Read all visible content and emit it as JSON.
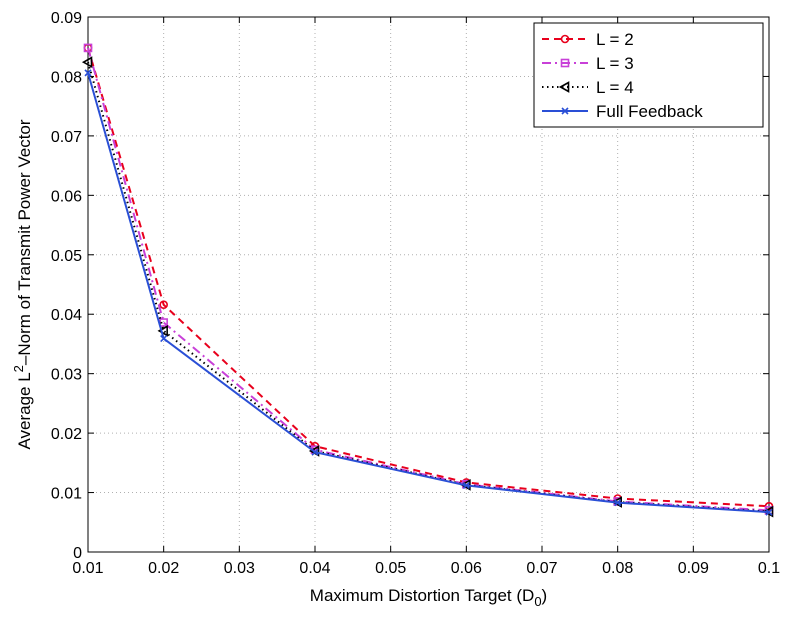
{
  "chart_data": {
    "type": "line",
    "title": "",
    "xlabel": "Maximum Distortion Target (D",
    "xlabel_sub": "0",
    "xlabel_suffix": ")",
    "ylabel": "Average L",
    "ylabel_sup": "2",
    "ylabel_suffix": "–Norm of Transmit Power Vector",
    "xlim": [
      0.01,
      0.1
    ],
    "ylim": [
      0,
      0.09
    ],
    "xticks": [
      0.01,
      0.02,
      0.03,
      0.04,
      0.05,
      0.06,
      0.07,
      0.08,
      0.09,
      0.1
    ],
    "yticks": [
      0,
      0.01,
      0.02,
      0.03,
      0.04,
      0.05,
      0.06,
      0.07,
      0.08,
      0.09
    ],
    "xtick_labels": [
      "0.01",
      "0.02",
      "0.03",
      "0.04",
      "0.05",
      "0.06",
      "0.07",
      "0.08",
      "0.09",
      "0.1"
    ],
    "ytick_labels": [
      "0",
      "0.01",
      "0.02",
      "0.03",
      "0.04",
      "0.05",
      "0.06",
      "0.07",
      "0.08",
      "0.09"
    ],
    "grid": true,
    "legend_position": "top-right",
    "x": [
      0.01,
      0.02,
      0.04,
      0.06,
      0.08,
      0.1
    ],
    "series": [
      {
        "name": "L = 2",
        "values": [
          0.0848,
          0.0416,
          0.0178,
          0.0117,
          0.009,
          0.0077
        ],
        "color": "#e8001c",
        "dash": "7,5",
        "marker": "circle"
      },
      {
        "name": "L = 3",
        "values": [
          0.0848,
          0.0386,
          0.0172,
          0.0114,
          0.0085,
          0.007
        ],
        "color": "#c840d8",
        "dash": "9,4,2,4",
        "marker": "square"
      },
      {
        "name": "L = 4",
        "values": [
          0.0824,
          0.0372,
          0.017,
          0.0113,
          0.0084,
          0.0068
        ],
        "color": "#000000",
        "dash": "1.5,3.5",
        "marker": "triangle-left"
      },
      {
        "name": "Full Feedback",
        "values": [
          0.0806,
          0.0359,
          0.0168,
          0.0112,
          0.0083,
          0.0067
        ],
        "color": "#2a4fd6",
        "dash": "",
        "marker": "x"
      }
    ]
  }
}
